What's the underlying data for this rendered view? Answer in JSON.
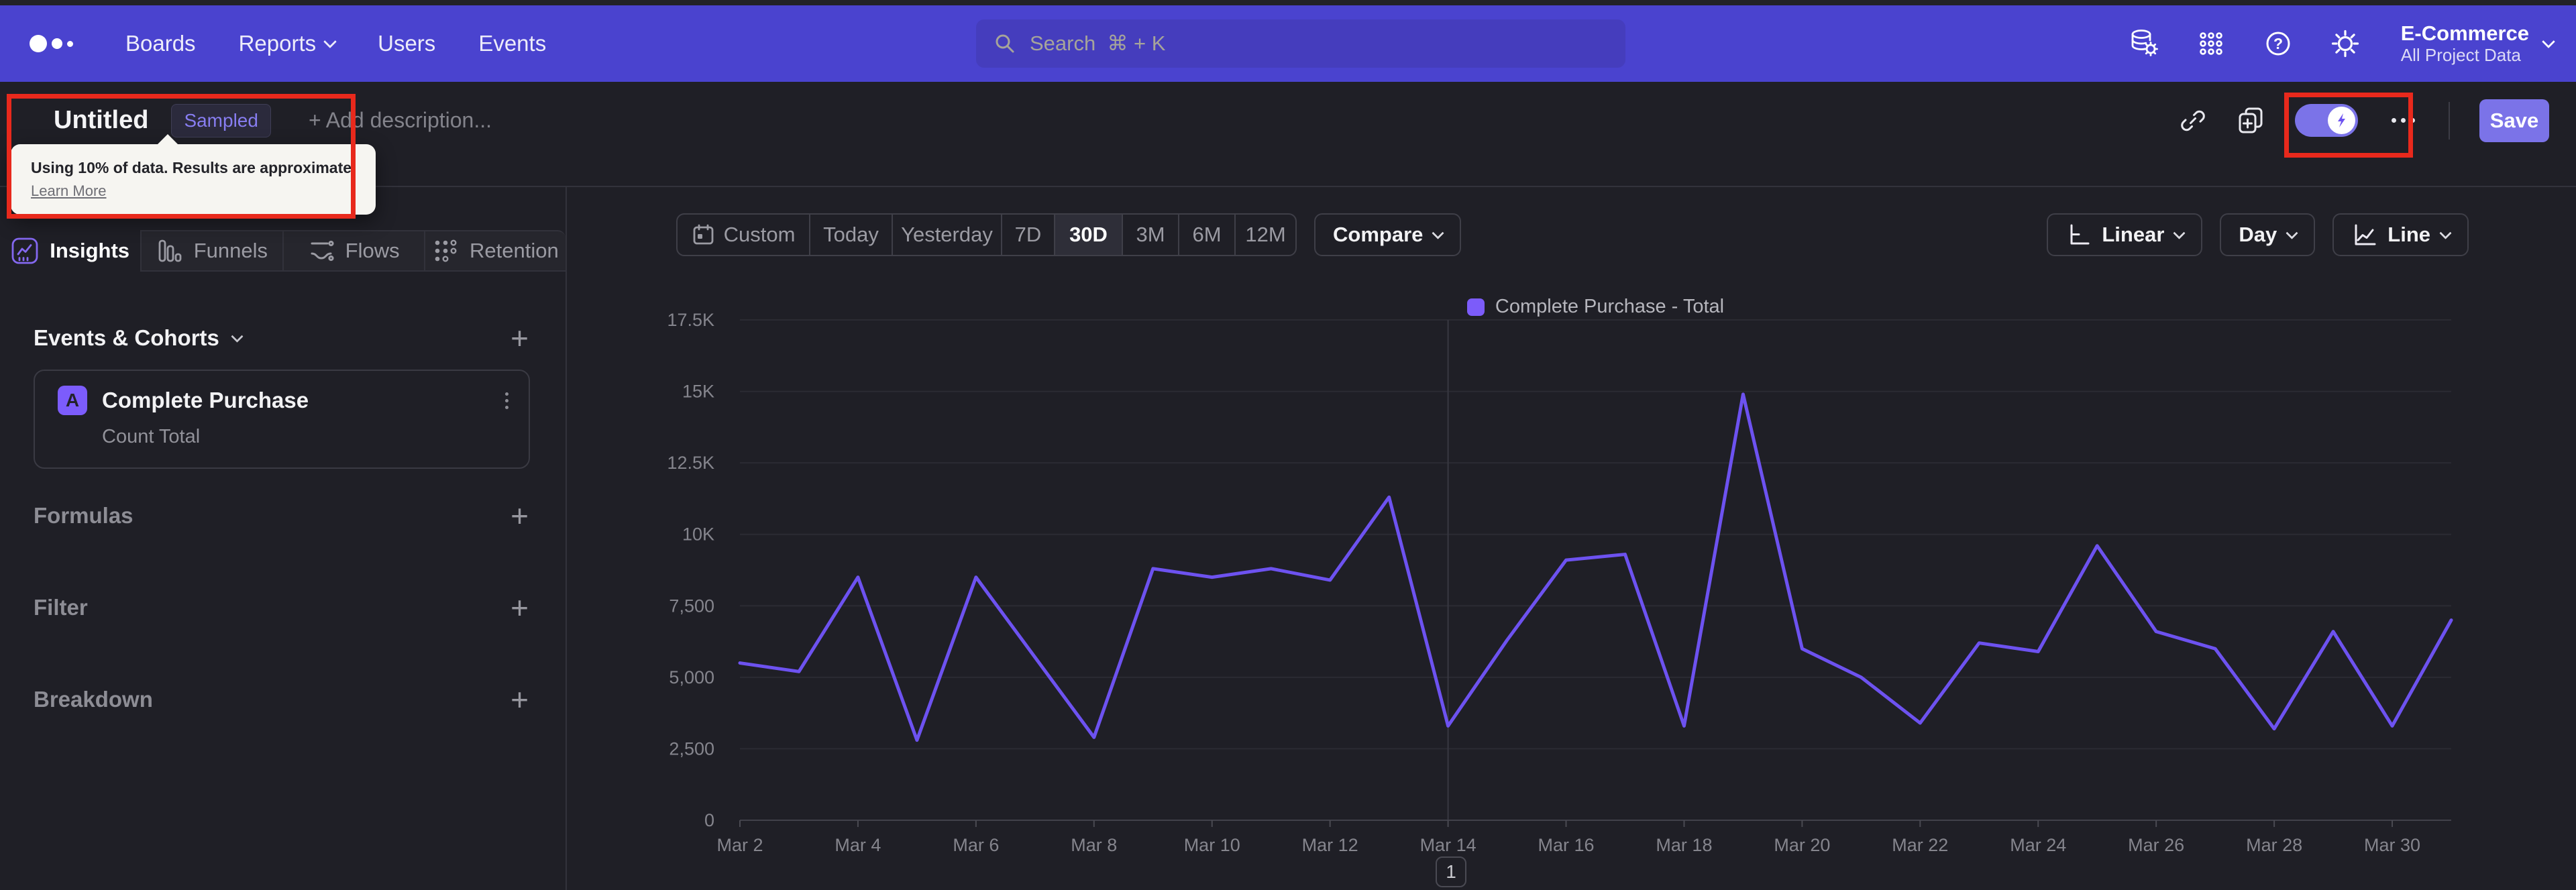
{
  "nav": {
    "items": [
      {
        "label": "Boards"
      },
      {
        "label": "Reports",
        "has_caret": true
      },
      {
        "label": "Users"
      },
      {
        "label": "Events"
      }
    ],
    "search_placeholder": "Search  ⌘ + K",
    "project": {
      "name": "E-Commerce",
      "scope": "All Project Data"
    }
  },
  "header": {
    "title": "Untitled",
    "badge": "Sampled",
    "add_description": "+ Add description...",
    "save": "Save"
  },
  "tooltip": {
    "text": "Using 10% of data. Results are approximate.",
    "link": "Learn More"
  },
  "sidebar": {
    "tabs": [
      {
        "label": "Insights",
        "active": true
      },
      {
        "label": "Funnels"
      },
      {
        "label": "Flows"
      },
      {
        "label": "Retention"
      }
    ],
    "events_heading": "Events & Cohorts",
    "event": {
      "letter": "A",
      "name": "Complete Purchase",
      "metric": "Count Total"
    },
    "sections": [
      {
        "label": "Formulas"
      },
      {
        "label": "Filter"
      },
      {
        "label": "Breakdown"
      }
    ]
  },
  "controls": {
    "ranges": [
      {
        "label": "Custom"
      },
      {
        "label": "Today"
      },
      {
        "label": "Yesterday"
      },
      {
        "label": "7D"
      },
      {
        "label": "30D",
        "active": true
      },
      {
        "label": "3M"
      },
      {
        "label": "6M"
      },
      {
        "label": "12M"
      }
    ],
    "compare": "Compare",
    "scale": "Linear",
    "interval": "Day",
    "chart_type": "Line"
  },
  "pagination": {
    "current": "1"
  },
  "icons": {
    "plus": "+"
  },
  "colors": {
    "nav": "#4a43cf",
    "accent": "#7b73e8",
    "line": "#6d52f0",
    "legend_swatch": "#7c5cfa",
    "annotation": "#e8291c"
  },
  "chart_data": {
    "type": "line",
    "title": "",
    "xlabel": "",
    "ylabel": "",
    "legend": "Complete Purchase - Total",
    "legend_position": "top-center",
    "grid": "horizontal",
    "ylim": [
      0,
      17500
    ],
    "y_ticks": [
      "0",
      "2,500",
      "5,000",
      "7,500",
      "10K",
      "12.5K",
      "15K",
      "17.5K"
    ],
    "x_tick_every": 2,
    "vertical_gridline_at": "Mar 14",
    "categories": [
      "Mar 2",
      "Mar 3",
      "Mar 4",
      "Mar 5",
      "Mar 6",
      "Mar 7",
      "Mar 8",
      "Mar 9",
      "Mar 10",
      "Mar 11",
      "Mar 12",
      "Mar 13",
      "Mar 14",
      "Mar 15",
      "Mar 16",
      "Mar 17",
      "Mar 18",
      "Mar 19",
      "Mar 20",
      "Mar 21",
      "Mar 22",
      "Mar 23",
      "Mar 24",
      "Mar 25",
      "Mar 26",
      "Mar 27",
      "Mar 28",
      "Mar 29",
      "Mar 30",
      "Mar 31"
    ],
    "series": [
      {
        "name": "Complete Purchase - Total",
        "color": "#6d52f0",
        "values": [
          5500,
          5200,
          8500,
          2800,
          8500,
          5700,
          2900,
          8800,
          8500,
          8800,
          8400,
          11300,
          3300,
          6300,
          9100,
          9300,
          3300,
          14900,
          6000,
          5000,
          3400,
          6200,
          5900,
          9600,
          6600,
          6000,
          3200,
          6600,
          3300,
          7000
        ]
      }
    ]
  }
}
